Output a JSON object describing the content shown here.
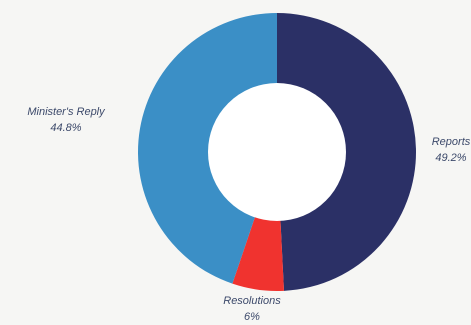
{
  "chart_data": {
    "type": "pie",
    "donut": true,
    "title": "",
    "slices": [
      {
        "label": "Reports",
        "percent_text": "49.2%",
        "value": 49.2,
        "color": "#2b3066"
      },
      {
        "label": "Resolutions",
        "percent_text": "6%",
        "value": 6,
        "color": "#f0332f"
      },
      {
        "label": "Minister's Reply",
        "percent_text": "44.8%",
        "value": 44.8,
        "color": "#3b8fc6"
      }
    ],
    "start_angle_deg": 0,
    "direction": "clockwise",
    "legend": "none",
    "label_placement": "outside"
  }
}
